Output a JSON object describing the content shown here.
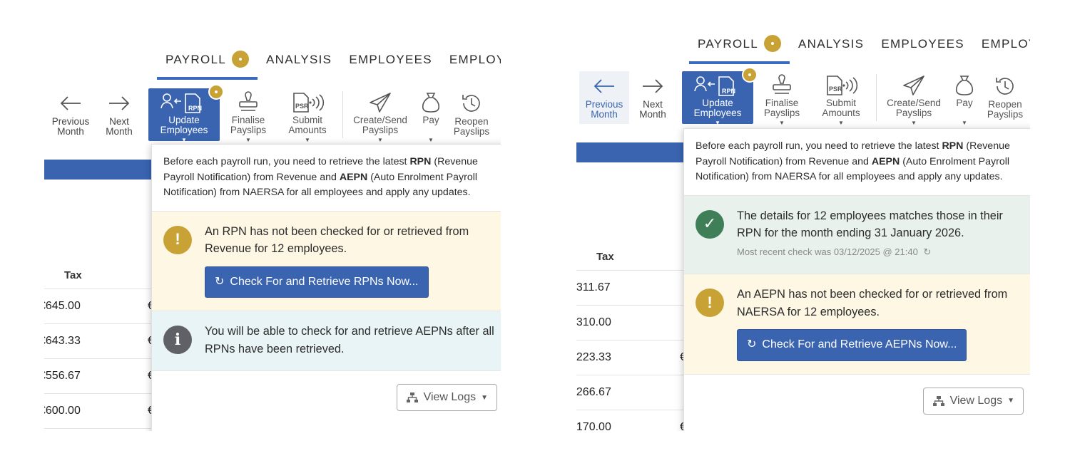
{
  "tabs": [
    {
      "label": "PAYROLL",
      "active": true,
      "has_badge": true
    },
    {
      "label": "ANALYSIS"
    },
    {
      "label": "EMPLOYEES"
    },
    {
      "label": "EMPLOY"
    }
  ],
  "tabs_right_last": "EMPLOYI",
  "toolbar": {
    "previous_month": "Previous Month",
    "next_month": "Next Month",
    "update_employees": "Update Employees",
    "finalise_payslips": "Finalise Payslips",
    "submit_amounts": "Submit Amounts",
    "create_send_payslips": "Create/Send Payslips",
    "pay": "Pay",
    "reopen_payslips": "Reopen Payslips",
    "caret": "▼"
  },
  "table": {
    "tax_header": "Tax",
    "left_values": [
      "€645.00",
      "€643.33",
      "€556.67",
      "€600.00"
    ],
    "right_values": [
      "€311.67",
      "€310.00",
      "€223.33",
      "€266.67",
      "€170.00"
    ],
    "euro_fragment": "€"
  },
  "dropdown_left": {
    "intro_parts": [
      "Before each payroll run, you need to retrieve the latest ",
      "RPN",
      " (Revenue Payroll Notification) from Revenue and ",
      "AEPN",
      " (Auto Enrolment Payroll Notification) from NAERSA for all employees and apply any updates."
    ],
    "rpn_warning": "An RPN has not been checked for or retrieved from Revenue for 12 employees.",
    "rpn_button": "Check For and Retrieve RPNs Now...",
    "aepn_info": "You will be able to check for and retrieve AEPNs after all RPNs have been retrieved.",
    "view_logs": "View Logs"
  },
  "dropdown_right": {
    "intro_parts": [
      "Before each payroll run, you need to retrieve the latest ",
      "RPN",
      " (Revenue Payroll Notification) from Revenue and ",
      "AEPN",
      " (Auto Enrolment Payroll Notification) from NAERSA for all employees and apply any updates."
    ],
    "rpn_success": "The details for 12 employees matches those in their RPN for the month ending 31 January 2026.",
    "recent_check": "Most recent check was 03/12/2025 @ 21:40",
    "aepn_warning": "An AEPN has not been checked for or retrieved from NAERSA for 12 employees.",
    "aepn_button": "Check For and Retrieve AEPNs Now...",
    "view_logs": "View Logs"
  },
  "icons": {
    "warning": "!",
    "info": "i",
    "check": "✓",
    "refresh": "↻"
  },
  "colors": {
    "accent": "#3a64b0",
    "gold": "#c9a235",
    "warning_bg": "#fdf7e4",
    "info_bg": "#e8f4f5",
    "success_bg": "#e9f1ed",
    "success_icon": "#3f7f57"
  }
}
